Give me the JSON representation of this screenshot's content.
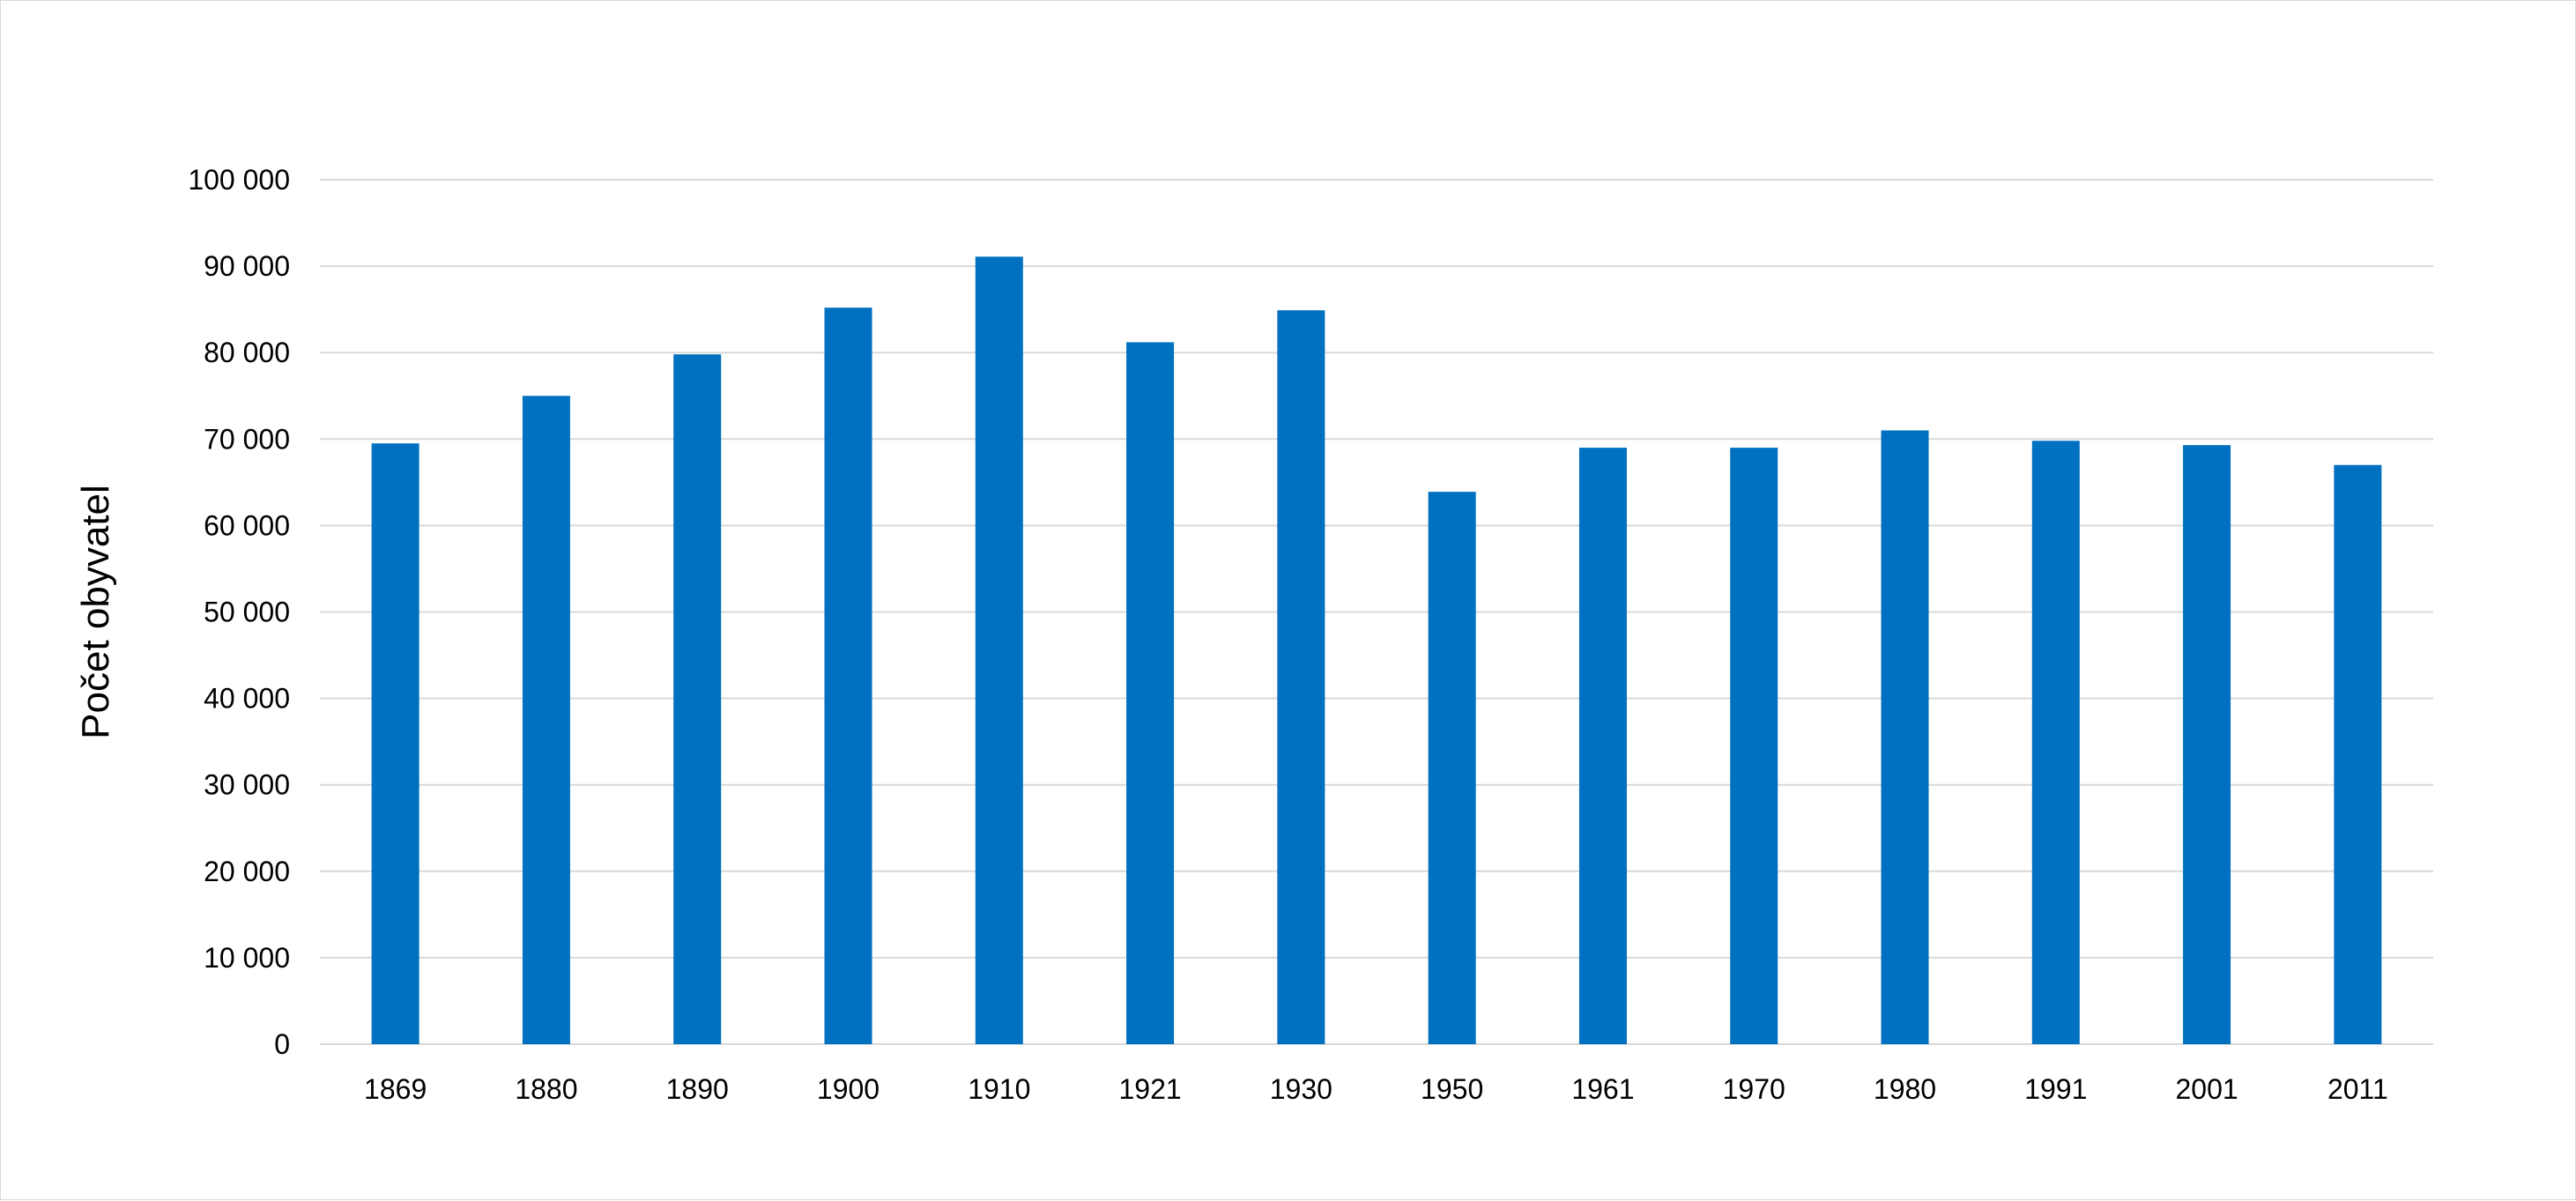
{
  "chart_data": {
    "type": "bar",
    "title": "",
    "xlabel": "",
    "ylabel": "Počet obyvatel",
    "categories": [
      "1869",
      "1880",
      "1890",
      "1900",
      "1910",
      "1921",
      "1930",
      "1950",
      "1961",
      "1970",
      "1980",
      "1991",
      "2001",
      "2011"
    ],
    "values": [
      69500,
      75000,
      79800,
      85200,
      91100,
      81200,
      84900,
      63900,
      69000,
      69000,
      71000,
      69800,
      69300,
      67000
    ],
    "ylim": [
      0,
      100000
    ],
    "yticks": [
      0,
      10000,
      20000,
      30000,
      40000,
      50000,
      60000,
      70000,
      80000,
      90000,
      100000
    ],
    "ytick_labels": [
      "0",
      "10 000",
      "20 000",
      "30 000",
      "40 000",
      "50 000",
      "60 000",
      "70 000",
      "80 000",
      "90 000",
      "100 000"
    ],
    "grid": true,
    "legend": "none",
    "bar_color": "#0070C0",
    "grid_color": "#d9d9d9"
  }
}
